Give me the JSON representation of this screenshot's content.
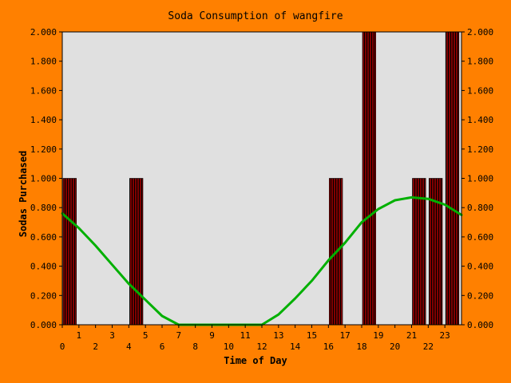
{
  "chart_data": {
    "type": "bar",
    "title": "Soda Consumption of wangfire",
    "xlabel": "Time of Day",
    "ylabel": "Sodas Purchased",
    "x_ticks": [
      "0",
      "1",
      "2",
      "3",
      "4",
      "5",
      "6",
      "7",
      "8",
      "9",
      "10",
      "11",
      "12",
      "13",
      "14",
      "15",
      "16",
      "17",
      "18",
      "19",
      "20",
      "21",
      "22",
      "23"
    ],
    "y_ticks": [
      "0.000",
      "0.200",
      "0.400",
      "0.600",
      "0.800",
      "1.000",
      "1.200",
      "1.400",
      "1.600",
      "1.800",
      "2.000"
    ],
    "ylim": [
      0,
      2
    ],
    "xlim": [
      0,
      24
    ],
    "y_axis_right": true,
    "grid": false,
    "bars": [
      {
        "hour": 0,
        "value": 1
      },
      {
        "hour": 4,
        "value": 1
      },
      {
        "hour": 16,
        "value": 1
      },
      {
        "hour": 18,
        "value": 2
      },
      {
        "hour": 21,
        "value": 1
      },
      {
        "hour": 22,
        "value": 1
      },
      {
        "hour": 23,
        "value": 2
      }
    ],
    "trend_line": {
      "x": [
        0,
        1,
        2,
        3,
        4,
        5,
        6,
        7,
        8,
        9,
        10,
        11,
        12,
        13,
        14,
        15,
        16,
        17,
        18,
        19,
        20,
        21,
        22,
        23,
        24
      ],
      "y": [
        0.76,
        0.66,
        0.54,
        0.41,
        0.28,
        0.17,
        0.06,
        0,
        0,
        0,
        0,
        0,
        0,
        0.07,
        0.18,
        0.3,
        0.44,
        0.56,
        0.7,
        0.79,
        0.85,
        0.87,
        0.86,
        0.82,
        0.75
      ]
    },
    "colors": {
      "background": "#ff8000",
      "plot_area": "#e0e0e0",
      "bar_fill": "#800000",
      "bar_stripe": "#000000",
      "line": "#00b000"
    }
  }
}
